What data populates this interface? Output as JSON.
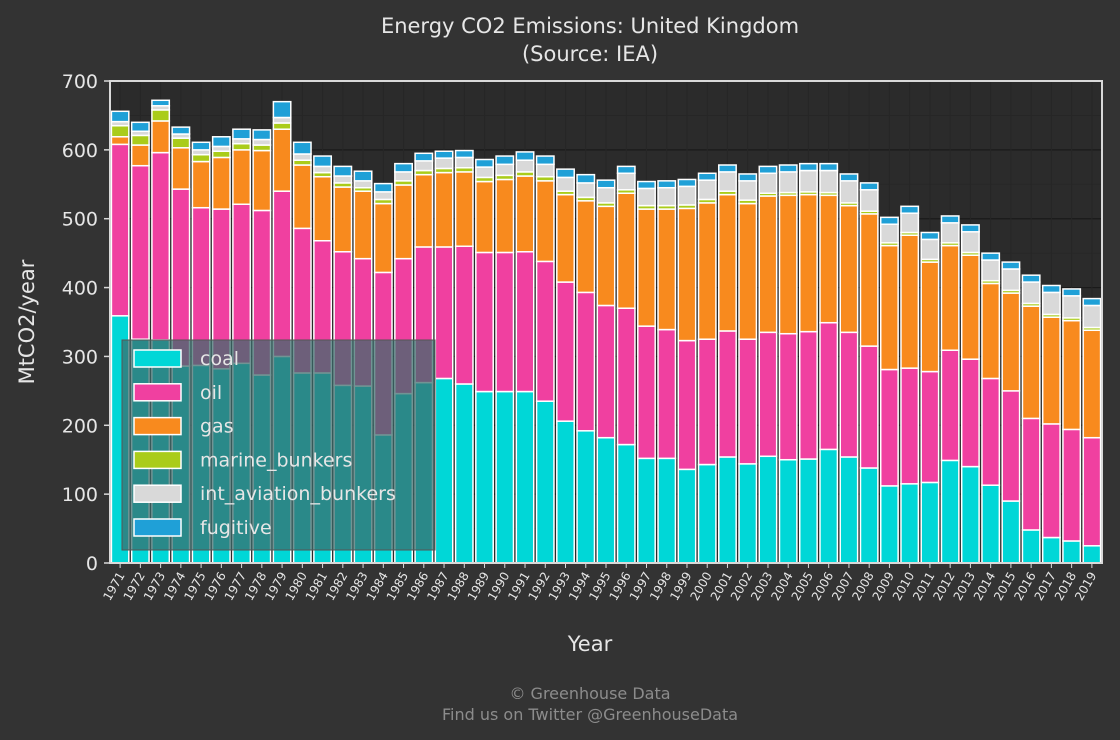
{
  "chart_data": {
    "type": "bar",
    "stacked": true,
    "title": "Energy CO2 Emissions: United Kingdom",
    "subtitle": "(Source: IEA)",
    "xlabel": "Year",
    "ylabel": "MtCO2/year",
    "ylim": [
      0,
      700
    ],
    "yticks": [
      0,
      100,
      200,
      300,
      400,
      500,
      600,
      700
    ],
    "grid": true,
    "legend_position": "bottom-left",
    "categories": [
      "1971",
      "1972",
      "1973",
      "1974",
      "1975",
      "1976",
      "1977",
      "1978",
      "1979",
      "1980",
      "1981",
      "1982",
      "1983",
      "1984",
      "1985",
      "1986",
      "1987",
      "1988",
      "1989",
      "1990",
      "1991",
      "1992",
      "1993",
      "1994",
      "1995",
      "1996",
      "1997",
      "1998",
      "1999",
      "2000",
      "2001",
      "2002",
      "2003",
      "2004",
      "2005",
      "2006",
      "2007",
      "2008",
      "2009",
      "2010",
      "2011",
      "2012",
      "2013",
      "2014",
      "2015",
      "2016",
      "2017",
      "2018",
      "2019"
    ],
    "series": [
      {
        "name": "coal",
        "color": "#00d7d7",
        "values": [
          359,
          325,
          324,
          286,
          287,
          282,
          290,
          273,
          300,
          276,
          276,
          258,
          257,
          186,
          246,
          262,
          268,
          260,
          249,
          249,
          249,
          235,
          206,
          192,
          182,
          172,
          152,
          152,
          136,
          143,
          154,
          144,
          155,
          150,
          151,
          165,
          154,
          138,
          112,
          115,
          117,
          149,
          140,
          113,
          90,
          48,
          37,
          32,
          25
        ]
      },
      {
        "name": "oil",
        "color": "#f040a0",
        "values": [
          249,
          252,
          272,
          257,
          229,
          232,
          231,
          239,
          240,
          210,
          192,
          194,
          185,
          236,
          196,
          197,
          191,
          200,
          202,
          202,
          203,
          203,
          202,
          201,
          192,
          198,
          192,
          187,
          187,
          182,
          183,
          181,
          180,
          183,
          185,
          184,
          181,
          177,
          169,
          168,
          161,
          160,
          156,
          155,
          160,
          162,
          165,
          162,
          157
        ]
      },
      {
        "name": "gas",
        "color": "#f88a1e",
        "values": [
          11,
          30,
          46,
          60,
          67,
          75,
          79,
          87,
          90,
          92,
          93,
          94,
          98,
          100,
          107,
          105,
          108,
          108,
          103,
          106,
          110,
          117,
          127,
          133,
          144,
          167,
          170,
          175,
          192,
          198,
          198,
          197,
          198,
          201,
          199,
          185,
          184,
          192,
          180,
          193,
          159,
          152,
          151,
          138,
          142,
          163,
          155,
          158,
          156
        ]
      },
      {
        "name": "marine_bunkers",
        "color": "#aacc1a",
        "values": [
          16,
          14,
          16,
          14,
          10,
          9,
          9,
          8,
          9,
          7,
          6,
          6,
          5,
          6,
          6,
          6,
          6,
          6,
          6,
          6,
          6,
          6,
          5,
          5,
          5,
          5,
          5,
          5,
          5,
          5,
          5,
          5,
          4,
          4,
          4,
          4,
          4,
          4,
          4,
          4,
          4,
          4,
          4,
          4,
          4,
          4,
          4,
          4,
          4
        ]
      },
      {
        "name": "int_aviation_bunkers",
        "color": "#d9d9d9",
        "values": [
          6,
          6,
          6,
          6,
          7,
          7,
          7,
          8,
          8,
          9,
          9,
          10,
          10,
          11,
          13,
          14,
          15,
          15,
          15,
          16,
          17,
          18,
          20,
          21,
          22,
          24,
          25,
          26,
          27,
          28,
          28,
          28,
          29,
          30,
          31,
          32,
          32,
          31,
          27,
          28,
          29,
          29,
          30,
          30,
          31,
          31,
          32,
          32,
          32
        ]
      },
      {
        "name": "fugitive",
        "color": "#1fa0d7",
        "values": [
          15,
          13,
          8,
          10,
          11,
          14,
          14,
          14,
          23,
          17,
          15,
          14,
          14,
          12,
          12,
          11,
          10,
          10,
          11,
          12,
          12,
          12,
          12,
          12,
          11,
          10,
          10,
          10,
          10,
          10,
          10,
          10,
          10,
          10,
          10,
          10,
          10,
          10,
          10,
          10,
          10,
          10,
          10,
          10,
          10,
          10,
          10,
          10,
          10
        ]
      }
    ]
  },
  "credits": {
    "line1": "© Greenhouse Data",
    "line2": "Find us on Twitter @GreenhouseData"
  }
}
